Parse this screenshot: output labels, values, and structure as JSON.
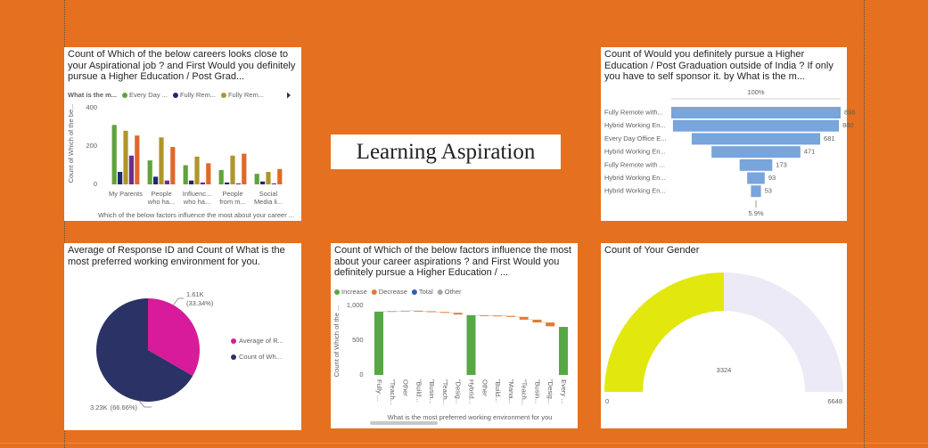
{
  "page_title": "Learning Aspiration",
  "chart_data": [
    {
      "type": "bar",
      "title": "Count of Which of the below careers looks close to your Aspirational job ? and First Would you definitely pursue a Higher Education / Post Grad...",
      "legend_title": "What is the m...",
      "x_label": "Which of the below factors influence the most about your career ...",
      "y_label": "Count of Which of the be...",
      "categories": [
        "My Parents",
        "People who ha...",
        "Influenc... who ha...",
        "People from m...",
        "Social Media li..."
      ],
      "series": [
        {
          "name": "Every Day ...",
          "color": "#5fa33c",
          "values": [
            310,
            125,
            100,
            75,
            55
          ]
        },
        {
          "name": "Fully Rem...",
          "color": "#1f2a6b",
          "values": [
            65,
            40,
            20,
            10,
            15
          ]
        },
        {
          "name": "Fully Rem...",
          "color": "#b0952a",
          "values": [
            280,
            245,
            145,
            150,
            65
          ]
        },
        {
          "name": null,
          "color": "#6a2c91",
          "values": [
            150,
            20,
            10,
            5,
            5
          ]
        },
        {
          "name": null,
          "color": "#e0682a",
          "values": [
            255,
            195,
            110,
            160,
            80
          ]
        }
      ],
      "ylim": [
        0,
        430
      ],
      "yticks": [
        0,
        200,
        400
      ],
      "grid": false
    },
    {
      "type": "funnel",
      "title": "Count of Would you definitely pursue a Higher Education / Post Graduation outside of India ? If only you have to self sponsor it. by What is the m...",
      "categories": [
        "Fully Remote with...",
        "Hybrid Working En...",
        "Every Day Office E...",
        "Hybrid Working En...",
        "Fully Remote with ...",
        "Hybrid Working En...",
        "Hybrid Working En..."
      ],
      "values": [
        898,
        880,
        681,
        471,
        173,
        93,
        53
      ],
      "color": "#77a5dc",
      "first_label": "100%",
      "last_label": "5.9%"
    },
    {
      "type": "pie",
      "title": "Average of Response ID and Count of What is the most preferred working environment for you.",
      "categories": [
        "Average of R...",
        "Count of Wh..."
      ],
      "values": [
        1614,
        3227
      ],
      "value_labels": [
        "1.61K",
        "3.23K"
      ],
      "percent_labels": [
        "(33.34%)",
        "(66.66%)"
      ],
      "colors": [
        "#d81b9a",
        "#2b3266"
      ]
    },
    {
      "type": "waterfall",
      "title": "Count of Which of the below factors influence the most about your career aspirations ? and First Would you definitely pursue a Higher Education / ...",
      "legend": [
        {
          "name": "Increase",
          "color": "#57a845"
        },
        {
          "name": "Decrease",
          "color": "#e07b39"
        },
        {
          "name": "Total",
          "color": "#2a64b6"
        },
        {
          "name": "Other",
          "color": "#a6a6a6"
        }
      ],
      "x_label": "What is the most preferred working environment for you",
      "y_label": "Count of Which of the ...",
      "categories": [
        "Fully ...",
        "\"Teach...",
        "Other",
        "\"Build...",
        "\"Busin...",
        "\"Teach...",
        "\"Desig...",
        "Hybrid...",
        "Other",
        "\"Build...",
        "\"Mana...",
        "\"Teach...",
        "\"Busin...",
        "\"Desig...",
        "Every ..."
      ],
      "values": [
        910,
        8,
        5,
        -8,
        -10,
        -12,
        -25,
        859,
        -5,
        -5,
        -15,
        -40,
        -40,
        -55,
        690
      ],
      "kinds": [
        0,
        3,
        3,
        1,
        1,
        1,
        1,
        0,
        1,
        1,
        1,
        1,
        1,
        1,
        0
      ],
      "absolute": [
        true,
        false,
        false,
        false,
        false,
        false,
        false,
        true,
        false,
        false,
        false,
        false,
        false,
        false,
        true
      ],
      "ylim": [
        0,
        1100
      ],
      "yticks": [
        0,
        500,
        {
          "value": 1000,
          "label": "1,000"
        }
      ]
    },
    {
      "type": "gauge",
      "title": "Count of Your Gender",
      "value": 3324,
      "min": 0,
      "max": 6648,
      "color": "#e2e80e",
      "track_color": "#eceaf6"
    }
  ]
}
